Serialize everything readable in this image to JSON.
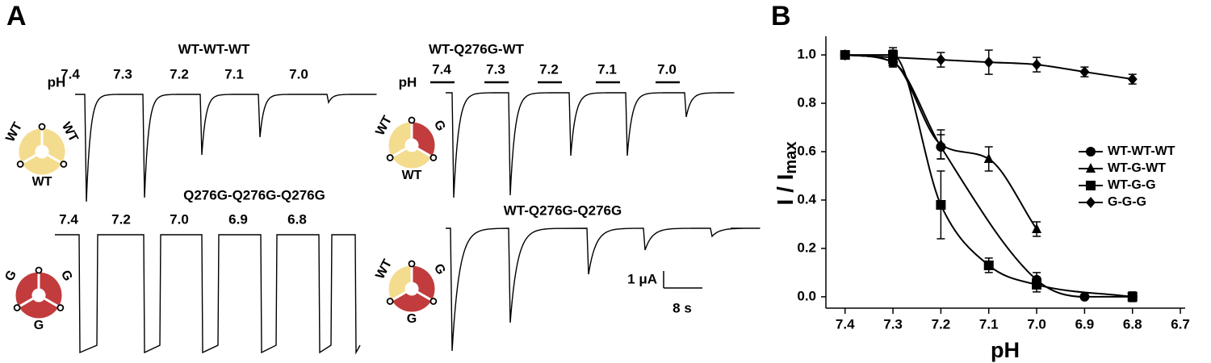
{
  "panel_a": {
    "label": "A",
    "subunit_colors": {
      "WT": "#f4dc8e",
      "G": "#c23b3d"
    },
    "groups": [
      {
        "title": "WT-WT-WT",
        "ph_label": "pH",
        "steps": [
          "7.4",
          "7.3",
          "7.2",
          "7.1",
          "7.0"
        ],
        "subunits": [
          "WT",
          "WT",
          "WT"
        ]
      },
      {
        "title": "WT-Q276G-WT",
        "ph_label": "pH",
        "steps": [
          "7.4",
          "7.3",
          "7.2",
          "7.1",
          "7.0"
        ],
        "subunits": [
          "WT",
          "G",
          "WT"
        ]
      },
      {
        "title": "Q276G-Q276G-Q276G",
        "steps": [
          "7.4",
          "7.2",
          "7.0",
          "6.9",
          "6.8"
        ],
        "subunits": [
          "G",
          "G",
          "G"
        ]
      },
      {
        "title": "WT-Q276G-Q276G",
        "subunits": [
          "WT",
          "G",
          "G"
        ]
      }
    ],
    "scale_bar": {
      "current": "1 μA",
      "time": "8 s"
    }
  },
  "panel_b": {
    "label": "B"
  },
  "chart_data": {
    "type": "line",
    "xlabel": "pH",
    "ylabel": {
      "text": "I / I",
      "subscript": "max"
    },
    "x": [
      7.4,
      7.3,
      7.2,
      7.1,
      7.0,
      6.9,
      6.8
    ],
    "xlim": [
      7.44,
      6.69
    ],
    "xticks": [
      7.4,
      7.3,
      7.2,
      7.1,
      {
        "value": 7,
        "label": "7.0"
      },
      6.9,
      6.8,
      6.7
    ],
    "ylim": [
      -0.047,
      1.077
    ],
    "yticks": [
      {
        "value": 0,
        "label": "0.0"
      },
      0.2,
      0.4,
      0.6,
      0.8,
      {
        "value": 1,
        "label": "1.0"
      }
    ],
    "legend": "right",
    "series": [
      {
        "name": "WT-WT-WT",
        "marker": "circle",
        "color": "#000000",
        "values": [
          1.0,
          0.97,
          0.62,
          null,
          0.07,
          0.0,
          0.0
        ],
        "errors": [
          null,
          0.02,
          0.05,
          null,
          0.03,
          null,
          null
        ]
      },
      {
        "name": "WT-G-WT",
        "marker": "triangle",
        "color": "#000000",
        "values": [
          1.0,
          0.97,
          0.63,
          0.57,
          0.28,
          null,
          null
        ],
        "errors": [
          null,
          null,
          0.06,
          0.05,
          0.03,
          null,
          null
        ]
      },
      {
        "name": "WT-G-G",
        "marker": "square",
        "color": "#000000",
        "values": [
          1.0,
          1.0,
          0.38,
          0.13,
          0.05,
          null,
          0.0
        ],
        "errors": [
          null,
          0.03,
          0.14,
          0.03,
          0.03,
          null,
          0.02
        ]
      },
      {
        "name": "G-G-G",
        "marker": "diamond",
        "color": "#000000",
        "values": [
          1.0,
          0.99,
          0.98,
          0.97,
          0.96,
          0.93,
          0.9
        ],
        "errors": [
          null,
          0.03,
          0.03,
          0.05,
          0.03,
          0.02,
          0.02
        ]
      }
    ]
  }
}
